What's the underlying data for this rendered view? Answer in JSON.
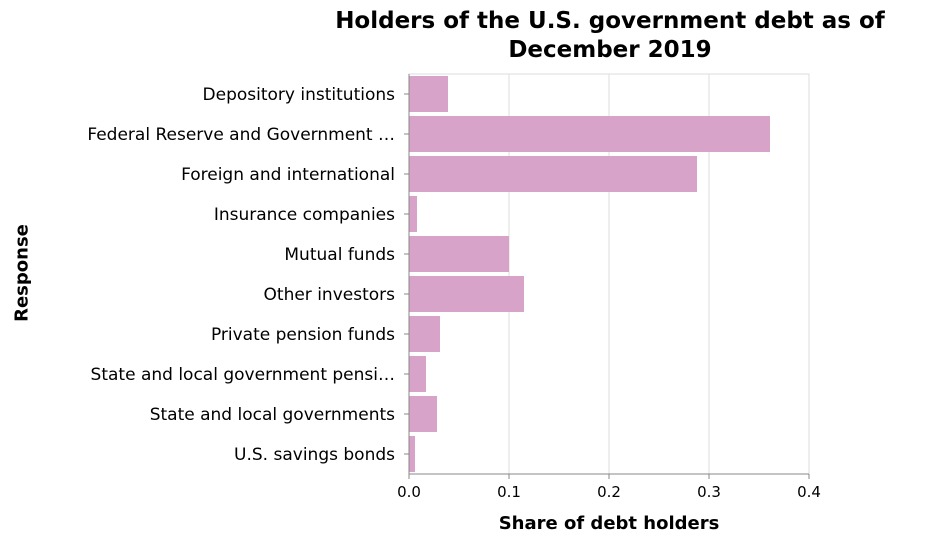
{
  "chart_data": {
    "type": "bar",
    "orientation": "horizontal",
    "title_lines": [
      "Holders of the U.S. government debt as of",
      "December 2019"
    ],
    "xlabel": "Share of debt holders",
    "ylabel": "Response",
    "xlim": [
      0,
      0.4
    ],
    "xticks": [
      "0.0",
      "0.1",
      "0.2",
      "0.3",
      "0.4"
    ],
    "grid": true,
    "bar_color": "#d8a3c9",
    "categories": [
      "Depository institutions",
      "Federal Reserve and Government …",
      "Foreign and international",
      "Insurance companies",
      "Mutual funds",
      "Other investors",
      "Private pension funds",
      "State and local government pensi…",
      "State and local governments",
      "U.S. savings bonds"
    ],
    "values": [
      0.039,
      0.361,
      0.288,
      0.008,
      0.1,
      0.115,
      0.031,
      0.017,
      0.028,
      0.006
    ]
  }
}
